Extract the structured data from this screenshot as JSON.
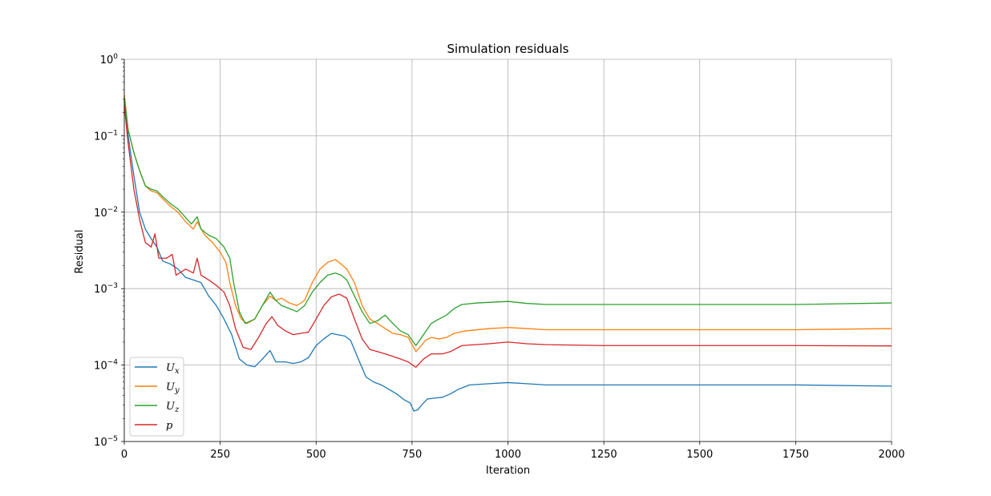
{
  "chart_data": {
    "type": "line",
    "title": "Simulation residuals",
    "xlabel": "Iteration",
    "ylabel": "Residual",
    "xlim": [
      0,
      2000
    ],
    "ylim": [
      1e-05,
      1
    ],
    "yscale": "log",
    "grid": true,
    "legend_position": "lower-left",
    "xticks": [
      0,
      250,
      500,
      750,
      1000,
      1250,
      1500,
      1750,
      2000
    ],
    "xtick_labels": [
      "0",
      "250",
      "500",
      "750",
      "1000",
      "1250",
      "1500",
      "1750",
      "2000"
    ],
    "yticks": [
      1,
      0.1,
      0.01,
      0.001,
      0.0001,
      1e-05
    ],
    "ytick_labels": [
      {
        "base": "10",
        "exp": "0"
      },
      {
        "base": "10",
        "exp": "−1"
      },
      {
        "base": "10",
        "exp": "−2"
      },
      {
        "base": "10",
        "exp": "−3"
      },
      {
        "base": "10",
        "exp": "−4"
      },
      {
        "base": "10",
        "exp": "−5"
      }
    ],
    "series": [
      {
        "name": "U",
        "subscript": "x",
        "color": "#1f77b4",
        "points": [
          [
            0,
            0.3
          ],
          [
            10,
            0.1
          ],
          [
            25,
            0.03
          ],
          [
            40,
            0.01
          ],
          [
            55,
            0.006
          ],
          [
            70,
            0.0045
          ],
          [
            85,
            0.0035
          ],
          [
            100,
            0.0023
          ],
          [
            120,
            0.0021
          ],
          [
            140,
            0.0018
          ],
          [
            160,
            0.0014
          ],
          [
            180,
            0.0013
          ],
          [
            200,
            0.0012
          ],
          [
            220,
            0.0008
          ],
          [
            240,
            0.0006
          ],
          [
            260,
            0.0004
          ],
          [
            280,
            0.00025
          ],
          [
            300,
            0.00012
          ],
          [
            320,
            0.0001
          ],
          [
            340,
            9.5e-05
          ],
          [
            360,
            0.00012
          ],
          [
            380,
            0.000155
          ],
          [
            395,
            0.00011
          ],
          [
            420,
            0.00011
          ],
          [
            440,
            0.000105
          ],
          [
            460,
            0.00011
          ],
          [
            480,
            0.000125
          ],
          [
            500,
            0.00018
          ],
          [
            520,
            0.00022
          ],
          [
            540,
            0.00026
          ],
          [
            555,
            0.00025
          ],
          [
            575,
            0.00024
          ],
          [
            590,
            0.00021
          ],
          [
            610,
            0.00012
          ],
          [
            630,
            7e-05
          ],
          [
            650,
            6e-05
          ],
          [
            670,
            5.5e-05
          ],
          [
            690,
            4.8e-05
          ],
          [
            710,
            4.2e-05
          ],
          [
            730,
            3.5e-05
          ],
          [
            745,
            3.2e-05
          ],
          [
            755,
            2.5e-05
          ],
          [
            765,
            2.6e-05
          ],
          [
            775,
            3e-05
          ],
          [
            790,
            3.6e-05
          ],
          [
            810,
            3.7e-05
          ],
          [
            830,
            3.8e-05
          ],
          [
            850,
            4.2e-05
          ],
          [
            870,
            4.8e-05
          ],
          [
            900,
            5.5e-05
          ],
          [
            950,
            5.7e-05
          ],
          [
            1000,
            5.9e-05
          ],
          [
            1050,
            5.7e-05
          ],
          [
            1100,
            5.5e-05
          ],
          [
            1150,
            5.5e-05
          ],
          [
            1250,
            5.5e-05
          ],
          [
            1500,
            5.5e-05
          ],
          [
            1750,
            5.5e-05
          ],
          [
            2000,
            5.3e-05
          ]
        ]
      },
      {
        "name": "U",
        "subscript": "y",
        "color": "#ff7f0e",
        "points": [
          [
            0,
            0.35
          ],
          [
            10,
            0.12
          ],
          [
            25,
            0.06
          ],
          [
            40,
            0.035
          ],
          [
            55,
            0.022
          ],
          [
            70,
            0.019
          ],
          [
            85,
            0.018
          ],
          [
            100,
            0.015
          ],
          [
            120,
            0.012
          ],
          [
            140,
            0.01
          ],
          [
            160,
            0.0075
          ],
          [
            180,
            0.006
          ],
          [
            190,
            0.0075
          ],
          [
            210,
            0.005
          ],
          [
            230,
            0.004
          ],
          [
            250,
            0.003
          ],
          [
            265,
            0.0022
          ],
          [
            275,
            0.0012
          ],
          [
            290,
            0.0006
          ],
          [
            305,
            0.0004
          ],
          [
            320,
            0.00035
          ],
          [
            340,
            0.0004
          ],
          [
            360,
            0.0006
          ],
          [
            380,
            0.0008
          ],
          [
            395,
            0.0007
          ],
          [
            410,
            0.00075
          ],
          [
            430,
            0.00065
          ],
          [
            450,
            0.0006
          ],
          [
            470,
            0.0007
          ],
          [
            490,
            0.0012
          ],
          [
            510,
            0.0018
          ],
          [
            530,
            0.0022
          ],
          [
            550,
            0.0024
          ],
          [
            565,
            0.0021
          ],
          [
            580,
            0.0018
          ],
          [
            600,
            0.0012
          ],
          [
            620,
            0.0006
          ],
          [
            640,
            0.0004
          ],
          [
            660,
            0.00035
          ],
          [
            680,
            0.0003
          ],
          [
            700,
            0.00026
          ],
          [
            720,
            0.00025
          ],
          [
            740,
            0.00023
          ],
          [
            760,
            0.00015
          ],
          [
            770,
            0.00017
          ],
          [
            785,
            0.00021
          ],
          [
            800,
            0.00023
          ],
          [
            820,
            0.00022
          ],
          [
            840,
            0.00023
          ],
          [
            860,
            0.00026
          ],
          [
            890,
            0.00028
          ],
          [
            950,
            0.0003
          ],
          [
            1000,
            0.00031
          ],
          [
            1050,
            0.0003
          ],
          [
            1100,
            0.00029
          ],
          [
            1250,
            0.00029
          ],
          [
            1500,
            0.00029
          ],
          [
            1750,
            0.00029
          ],
          [
            2000,
            0.0003
          ]
        ]
      },
      {
        "name": "U",
        "subscript": "z",
        "color": "#2ca02c",
        "points": [
          [
            0,
            0.32
          ],
          [
            10,
            0.12
          ],
          [
            25,
            0.06
          ],
          [
            40,
            0.035
          ],
          [
            55,
            0.022
          ],
          [
            70,
            0.02
          ],
          [
            85,
            0.019
          ],
          [
            100,
            0.016
          ],
          [
            120,
            0.013
          ],
          [
            140,
            0.011
          ],
          [
            160,
            0.0085
          ],
          [
            175,
            0.007
          ],
          [
            190,
            0.0087
          ],
          [
            200,
            0.006
          ],
          [
            220,
            0.005
          ],
          [
            240,
            0.0045
          ],
          [
            260,
            0.0035
          ],
          [
            275,
            0.0025
          ],
          [
            285,
            0.0012
          ],
          [
            300,
            0.0005
          ],
          [
            315,
            0.00035
          ],
          [
            340,
            0.0004
          ],
          [
            360,
            0.0006
          ],
          [
            380,
            0.0009
          ],
          [
            395,
            0.0007
          ],
          [
            410,
            0.0006
          ],
          [
            430,
            0.00055
          ],
          [
            450,
            0.0005
          ],
          [
            470,
            0.0006
          ],
          [
            490,
            0.0009
          ],
          [
            510,
            0.0012
          ],
          [
            530,
            0.0015
          ],
          [
            550,
            0.0016
          ],
          [
            565,
            0.0015
          ],
          [
            580,
            0.0013
          ],
          [
            600,
            0.0008
          ],
          [
            620,
            0.0005
          ],
          [
            640,
            0.00035
          ],
          [
            660,
            0.00038
          ],
          [
            680,
            0.00045
          ],
          [
            700,
            0.00035
          ],
          [
            720,
            0.00028
          ],
          [
            740,
            0.00025
          ],
          [
            760,
            0.00018
          ],
          [
            780,
            0.00025
          ],
          [
            800,
            0.00035
          ],
          [
            820,
            0.0004
          ],
          [
            840,
            0.00045
          ],
          [
            860,
            0.00055
          ],
          [
            880,
            0.00062
          ],
          [
            920,
            0.00065
          ],
          [
            1000,
            0.00068
          ],
          [
            1050,
            0.00064
          ],
          [
            1100,
            0.00062
          ],
          [
            1250,
            0.00062
          ],
          [
            1500,
            0.00062
          ],
          [
            1750,
            0.00062
          ],
          [
            2000,
            0.00065
          ]
        ]
      },
      {
        "name": "p",
        "subscript": "",
        "color": "#d62728",
        "points": [
          [
            0,
            0.25
          ],
          [
            10,
            0.08
          ],
          [
            25,
            0.02
          ],
          [
            40,
            0.008
          ],
          [
            55,
            0.004
          ],
          [
            70,
            0.0035
          ],
          [
            80,
            0.0052
          ],
          [
            90,
            0.0025
          ],
          [
            110,
            0.0025
          ],
          [
            125,
            0.0028
          ],
          [
            135,
            0.0015
          ],
          [
            160,
            0.0018
          ],
          [
            180,
            0.0016
          ],
          [
            190,
            0.0025
          ],
          [
            200,
            0.0015
          ],
          [
            220,
            0.0013
          ],
          [
            240,
            0.0011
          ],
          [
            260,
            0.0009
          ],
          [
            275,
            0.0006
          ],
          [
            290,
            0.0003
          ],
          [
            310,
            0.00017
          ],
          [
            330,
            0.00016
          ],
          [
            350,
            0.00023
          ],
          [
            370,
            0.00035
          ],
          [
            385,
            0.00043
          ],
          [
            400,
            0.00033
          ],
          [
            420,
            0.00028
          ],
          [
            440,
            0.00025
          ],
          [
            460,
            0.00026
          ],
          [
            480,
            0.00027
          ],
          [
            500,
            0.0004
          ],
          [
            520,
            0.0006
          ],
          [
            540,
            0.00078
          ],
          [
            560,
            0.00085
          ],
          [
            580,
            0.00075
          ],
          [
            600,
            0.0004
          ],
          [
            620,
            0.00022
          ],
          [
            640,
            0.00016
          ],
          [
            660,
            0.00015
          ],
          [
            680,
            0.00014
          ],
          [
            700,
            0.00013
          ],
          [
            720,
            0.00012
          ],
          [
            740,
            0.00011
          ],
          [
            760,
            9.35e-05
          ],
          [
            780,
            0.00012
          ],
          [
            800,
            0.00014
          ],
          [
            830,
            0.00014
          ],
          [
            850,
            0.00015
          ],
          [
            880,
            0.00018
          ],
          [
            950,
            0.00019
          ],
          [
            1000,
            0.0002
          ],
          [
            1050,
            0.00019
          ],
          [
            1100,
            0.000185
          ],
          [
            1250,
            0.00018
          ],
          [
            1500,
            0.00018
          ],
          [
            1750,
            0.00018
          ],
          [
            2000,
            0.000178
          ]
        ]
      }
    ]
  }
}
